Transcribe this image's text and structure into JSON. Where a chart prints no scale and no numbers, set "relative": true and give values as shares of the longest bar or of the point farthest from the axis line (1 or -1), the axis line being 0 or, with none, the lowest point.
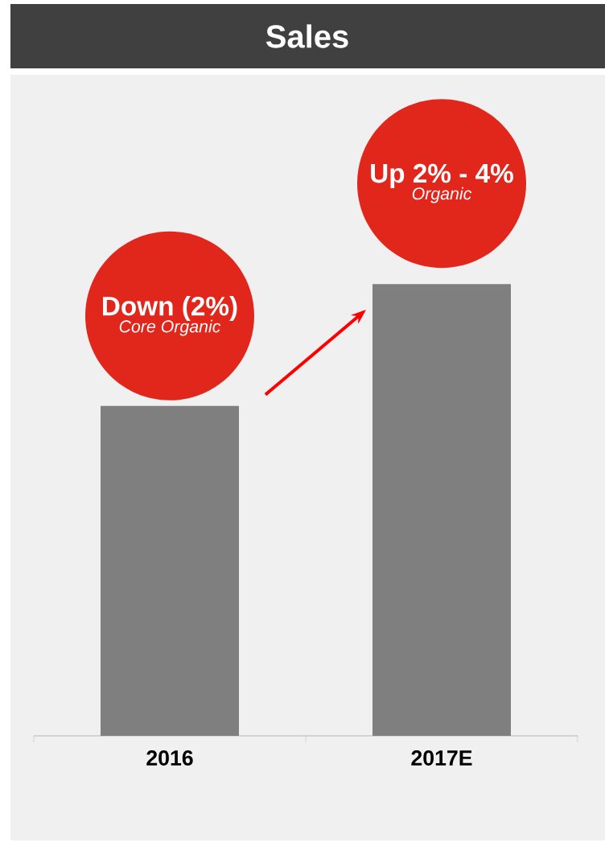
{
  "chart_data": {
    "type": "bar",
    "title": "Sales",
    "relative": true,
    "categories": [
      "2016",
      "2017E"
    ],
    "values": [
      0.73,
      1
    ],
    "color": "#7f7f7f",
    "annotations": [
      "Down (2%)",
      "Core Organic",
      "Up 2% - 4%",
      "Organic"
    ]
  }
}
